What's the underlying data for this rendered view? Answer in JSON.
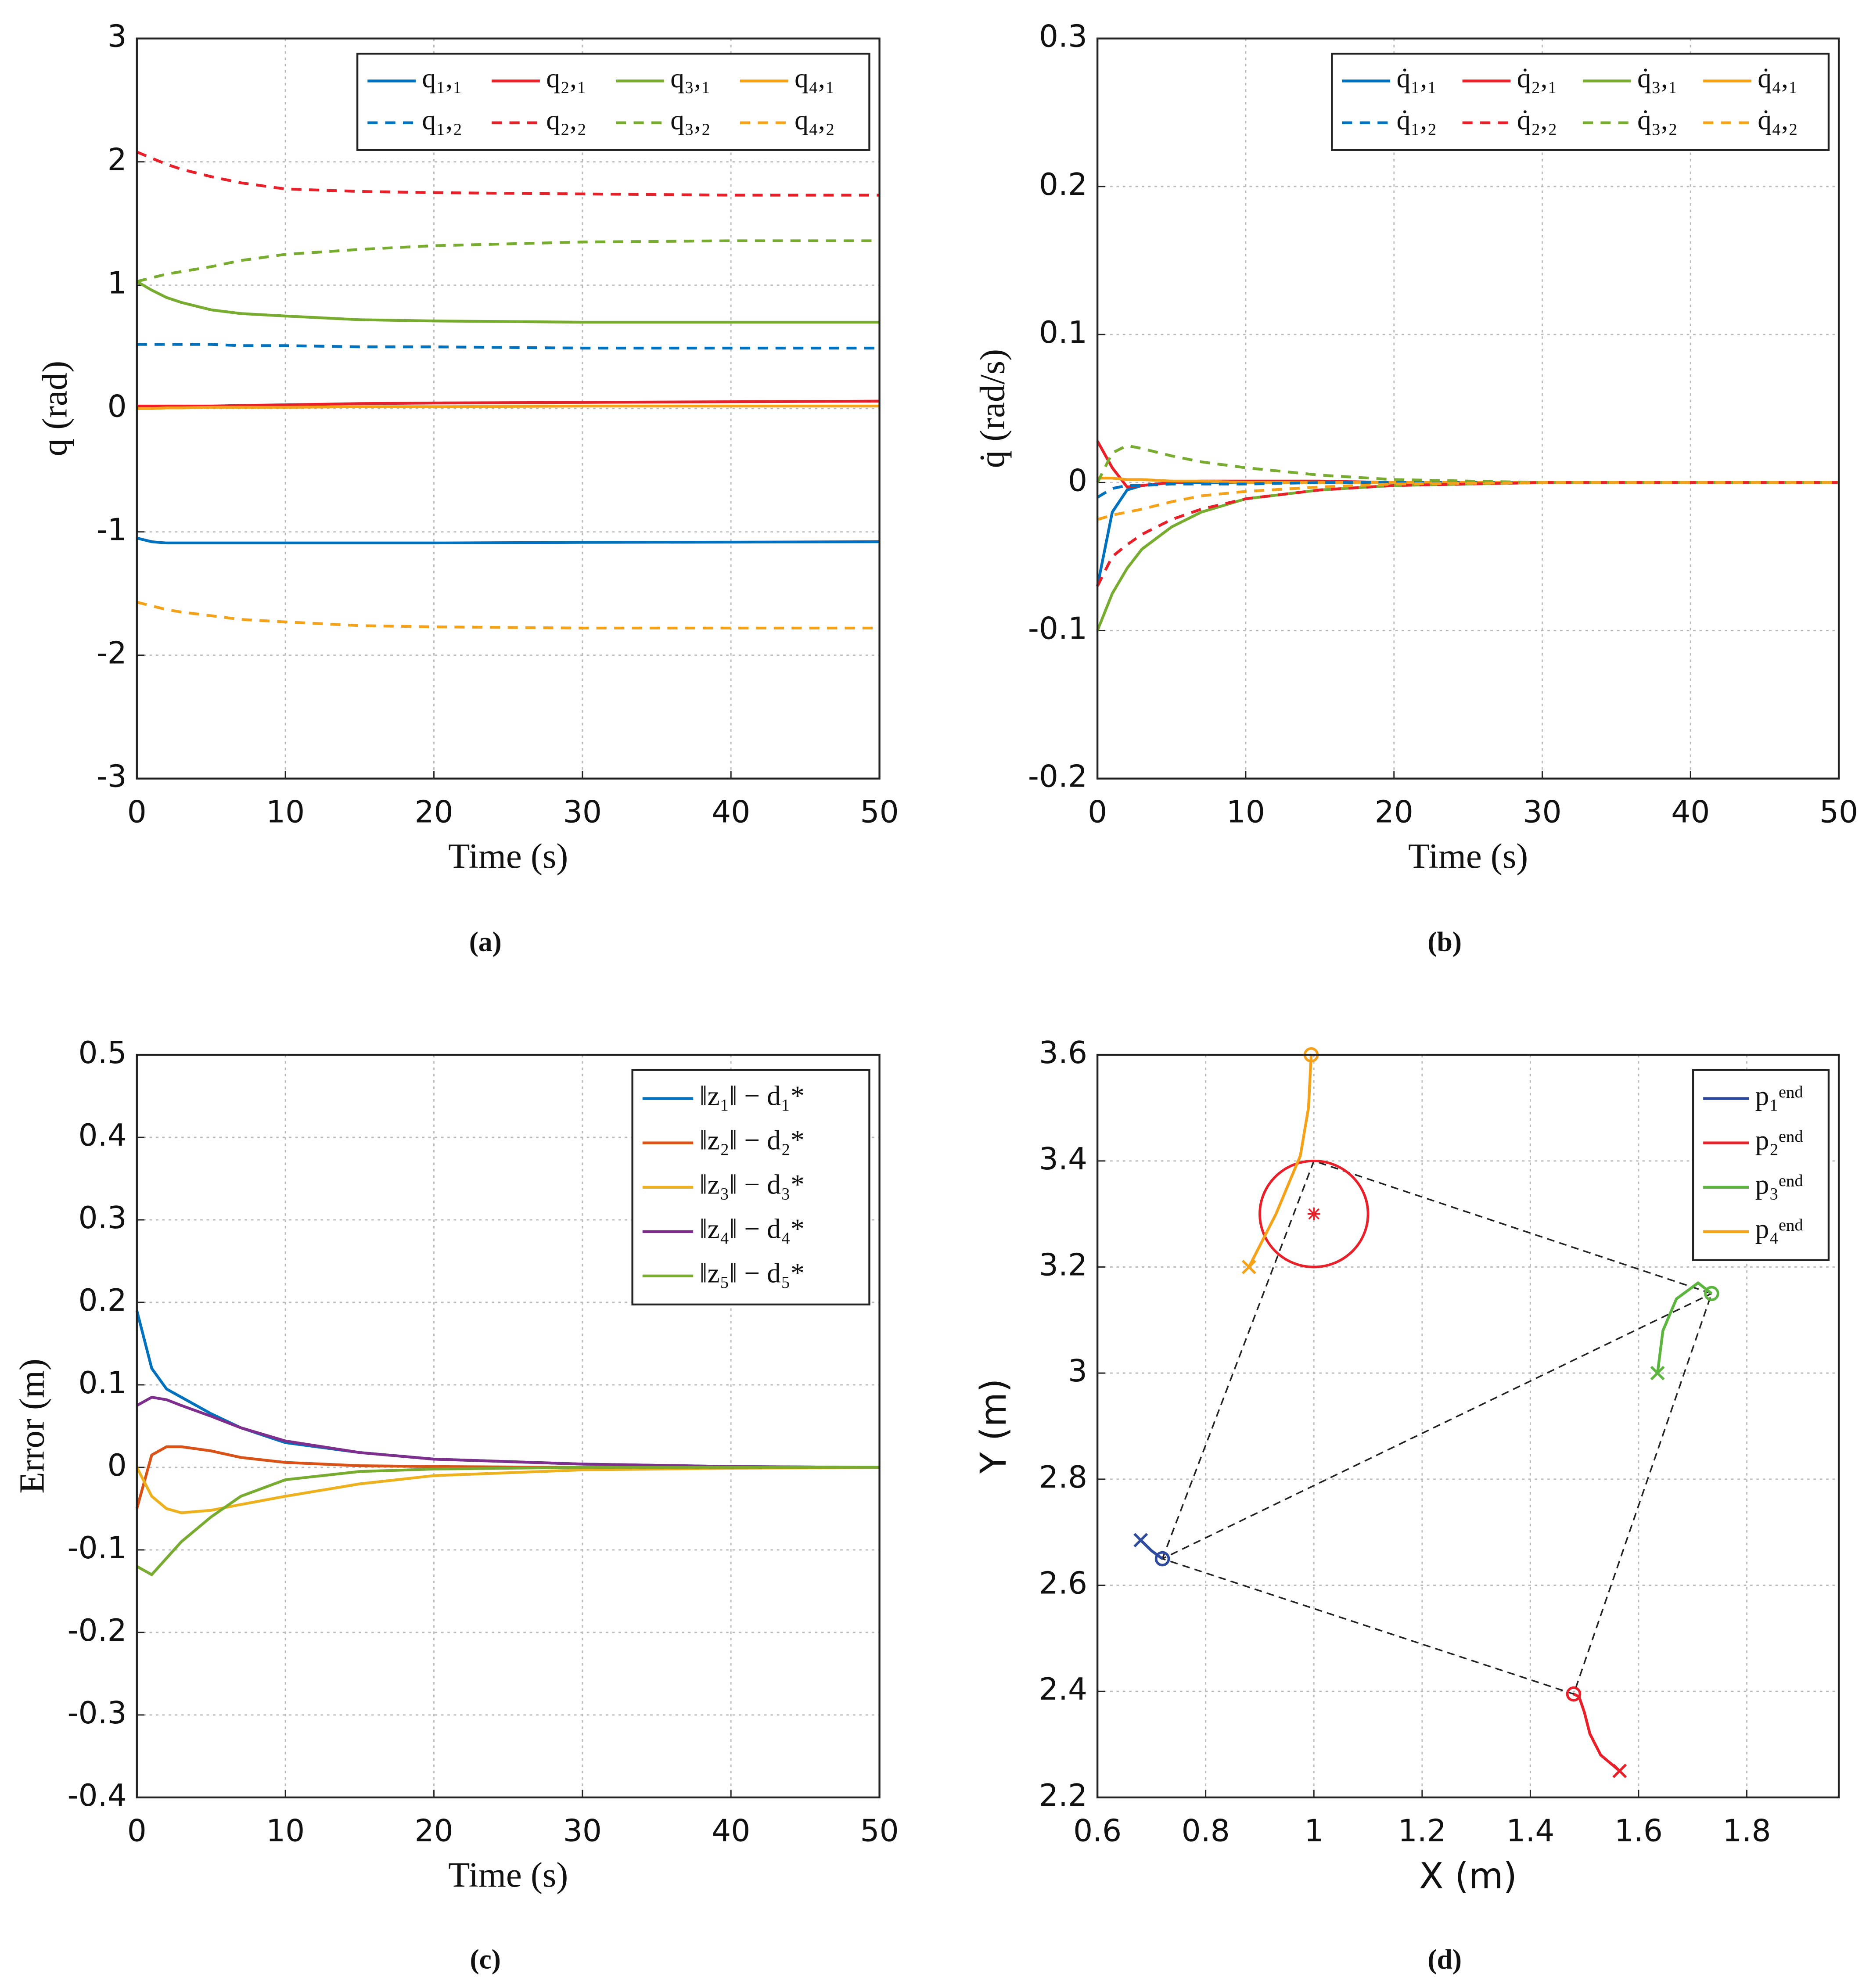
{
  "chart_data": [
    {
      "type": "line",
      "caption": "(a)",
      "xlabel": "Time (s)",
      "ylabel": "q (rad)",
      "xlim": [
        0,
        50
      ],
      "xticks": [
        0,
        10,
        20,
        30,
        40,
        50
      ],
      "ylim": [
        -3,
        3
      ],
      "yticks": [
        -3,
        -2,
        -1,
        0,
        1,
        2,
        3
      ],
      "grid": true,
      "legend": "northeast",
      "legend_columns": 4,
      "x": [
        0,
        1,
        2,
        3,
        5,
        7,
        10,
        15,
        20,
        30,
        40,
        50
      ],
      "series": [
        {
          "name": "q₁,₁",
          "color": "#0072bd",
          "line_style": "solid",
          "values": [
            -1.05,
            -1.08,
            -1.09,
            -1.09,
            -1.09,
            -1.09,
            -1.09,
            -1.09,
            -1.09,
            -1.085,
            -1.083,
            -1.08
          ]
        },
        {
          "name": "q₂,₁",
          "color": "#e8202a",
          "line_style": "solid",
          "values": [
            0.02,
            0.02,
            0.02,
            0.02,
            0.02,
            0.025,
            0.03,
            0.04,
            0.045,
            0.05,
            0.055,
            0.06
          ]
        },
        {
          "name": "q₃,₁",
          "color": "#77ac30",
          "line_style": "solid",
          "values": [
            1.03,
            0.96,
            0.9,
            0.86,
            0.8,
            0.77,
            0.75,
            0.72,
            0.71,
            0.7,
            0.7,
            0.7
          ]
        },
        {
          "name": "q₄,₁",
          "color": "#f5a21b",
          "line_style": "solid",
          "values": [
            0,
            0,
            0.005,
            0.005,
            0.01,
            0.01,
            0.01,
            0.015,
            0.015,
            0.02,
            0.02,
            0.02
          ]
        },
        {
          "name": "q₁,₂",
          "color": "#0072bd",
          "line_style": "dashed",
          "values": [
            0.52,
            0.52,
            0.52,
            0.52,
            0.52,
            0.51,
            0.51,
            0.5,
            0.5,
            0.49,
            0.49,
            0.49
          ]
        },
        {
          "name": "q₂,₂",
          "color": "#e8202a",
          "line_style": "dashed",
          "values": [
            2.08,
            2.03,
            1.98,
            1.94,
            1.88,
            1.83,
            1.78,
            1.76,
            1.75,
            1.74,
            1.73,
            1.73
          ]
        },
        {
          "name": "q₃,₂",
          "color": "#77ac30",
          "line_style": "dashed",
          "values": [
            1.03,
            1.06,
            1.09,
            1.11,
            1.15,
            1.2,
            1.25,
            1.29,
            1.32,
            1.35,
            1.36,
            1.36
          ]
        },
        {
          "name": "q₄,₂",
          "color": "#f5a21b",
          "line_style": "dashed",
          "values": [
            -1.57,
            -1.6,
            -1.63,
            -1.65,
            -1.68,
            -1.71,
            -1.73,
            -1.76,
            -1.77,
            -1.78,
            -1.78,
            -1.78
          ]
        }
      ]
    },
    {
      "type": "line",
      "caption": "(b)",
      "xlabel": "Time (s)",
      "ylabel": "q̇ (rad/s)",
      "xlim": [
        0,
        50
      ],
      "xticks": [
        0,
        10,
        20,
        30,
        40,
        50
      ],
      "ylim": [
        -0.2,
        0.3
      ],
      "yticks": [
        -0.2,
        -0.1,
        0,
        0.1,
        0.2,
        0.3
      ],
      "grid": true,
      "legend": "northeast",
      "legend_columns": 4,
      "x": [
        0,
        1,
        2,
        3,
        5,
        7,
        10,
        15,
        20,
        30,
        40,
        50
      ],
      "series": [
        {
          "name": "q̇₁,₁",
          "color": "#0072bd",
          "line_style": "solid",
          "values": [
            -0.07,
            -0.02,
            -0.005,
            -0.002,
            0,
            0,
            0,
            0,
            0,
            0,
            0,
            0
          ]
        },
        {
          "name": "q̇₂,₁",
          "color": "#e8202a",
          "line_style": "solid",
          "values": [
            0.028,
            0.01,
            -0.003,
            -0.002,
            0,
            0.001,
            0.001,
            0.001,
            0,
            0,
            0,
            0
          ]
        },
        {
          "name": "q̇₃,₁",
          "color": "#77ac30",
          "line_style": "solid",
          "values": [
            -0.1,
            -0.075,
            -0.058,
            -0.045,
            -0.03,
            -0.02,
            -0.011,
            -0.005,
            -0.002,
            0,
            0,
            0
          ]
        },
        {
          "name": "q̇₄,₁",
          "color": "#f5a21b",
          "line_style": "solid",
          "values": [
            0.003,
            0.003,
            0.002,
            0.002,
            0.001,
            0.001,
            0,
            0,
            0,
            0,
            0,
            0
          ]
        },
        {
          "name": "q̇₁,₂",
          "color": "#0072bd",
          "line_style": "dashed",
          "values": [
            -0.01,
            -0.004,
            -0.002,
            -0.002,
            -0.001,
            -0.001,
            -0.001,
            0,
            0,
            0,
            0,
            0
          ]
        },
        {
          "name": "q̇₂,₂",
          "color": "#e8202a",
          "line_style": "dashed",
          "values": [
            -0.07,
            -0.05,
            -0.042,
            -0.035,
            -0.025,
            -0.018,
            -0.011,
            -0.005,
            -0.002,
            0,
            0,
            0
          ]
        },
        {
          "name": "q̇₃,₂",
          "color": "#77ac30",
          "line_style": "dashed",
          "values": [
            0,
            0.02,
            0.025,
            0.023,
            0.018,
            0.014,
            0.01,
            0.005,
            0.002,
            0,
            0,
            0
          ]
        },
        {
          "name": "q̇₄,₂",
          "color": "#f5a21b",
          "line_style": "dashed",
          "values": [
            -0.025,
            -0.022,
            -0.02,
            -0.018,
            -0.013,
            -0.009,
            -0.006,
            -0.003,
            -0.001,
            0,
            0,
            0
          ]
        }
      ]
    },
    {
      "type": "line",
      "caption": "(c)",
      "xlabel": "Time (s)",
      "ylabel": "Error (m)",
      "xlim": [
        0,
        50
      ],
      "xticks": [
        0,
        10,
        20,
        30,
        40,
        50
      ],
      "ylim": [
        -0.4,
        0.5
      ],
      "yticks": [
        -0.4,
        -0.3,
        -0.2,
        -0.1,
        0,
        0.1,
        0.2,
        0.3,
        0.4,
        0.5
      ],
      "grid": true,
      "legend": "northeast",
      "legend_columns": 1,
      "x": [
        0,
        1,
        2,
        3,
        5,
        7,
        10,
        15,
        20,
        30,
        40,
        50
      ],
      "series": [
        {
          "name": "‖z₁‖ − d₁*",
          "color": "#0072bd",
          "line_style": "solid",
          "values": [
            0.19,
            0.12,
            0.095,
            0.085,
            0.065,
            0.048,
            0.03,
            0.018,
            0.01,
            0.004,
            0.001,
            0
          ]
        },
        {
          "name": "‖z₂‖ − d₂*",
          "color": "#d95319",
          "line_style": "solid",
          "values": [
            -0.05,
            0.015,
            0.025,
            0.025,
            0.02,
            0.012,
            0.006,
            0.002,
            0.001,
            0,
            0,
            0
          ]
        },
        {
          "name": "‖z₃‖ − d₃*",
          "color": "#edb120",
          "line_style": "solid",
          "values": [
            0,
            -0.035,
            -0.05,
            -0.055,
            -0.052,
            -0.045,
            -0.035,
            -0.02,
            -0.01,
            -0.003,
            -0.001,
            0
          ]
        },
        {
          "name": "‖z₄‖ − d₄*",
          "color": "#7e2f8e",
          "line_style": "solid",
          "values": [
            0.075,
            0.085,
            0.082,
            0.075,
            0.062,
            0.048,
            0.032,
            0.018,
            0.01,
            0.004,
            0.001,
            0
          ]
        },
        {
          "name": "‖z₅‖ − d₅*",
          "color": "#77ac30",
          "line_style": "solid",
          "values": [
            -0.12,
            -0.13,
            -0.11,
            -0.09,
            -0.06,
            -0.035,
            -0.015,
            -0.005,
            -0.002,
            0,
            0,
            0
          ]
        }
      ]
    },
    {
      "type": "trajectory",
      "caption": "(d)",
      "xlabel": "X (m)",
      "ylabel": "Y (m)",
      "xlim": [
        0.6,
        1.97
      ],
      "xticks": [
        0.6,
        0.8,
        1,
        1.2,
        1.4,
        1.6,
        1.8
      ],
      "ylim": [
        2.2,
        3.6
      ],
      "yticks": [
        2.2,
        2.4,
        2.6,
        2.8,
        3,
        3.2,
        3.4,
        3.6
      ],
      "grid": true,
      "legend": "northeast",
      "legend_columns": 1,
      "series": [
        {
          "name": "p₁ᵉⁿᵈ",
          "color": "#2d4a9e",
          "x": [
            0.68,
            0.7,
            0.72
          ],
          "values": [
            2.685,
            2.665,
            2.65
          ]
        },
        {
          "name": "p₂ᵉⁿᵈ",
          "color": "#e8202a",
          "x": [
            1.565,
            1.53,
            1.51,
            1.5,
            1.49,
            1.48
          ],
          "values": [
            2.25,
            2.28,
            2.32,
            2.36,
            2.39,
            2.395
          ]
        },
        {
          "name": "p₃ᵉⁿᵈ",
          "color": "#5bb53e",
          "x": [
            1.635,
            1.645,
            1.67,
            1.71,
            1.735
          ],
          "values": [
            3.0,
            3.08,
            3.14,
            3.17,
            3.15
          ]
        },
        {
          "name": "p₄ᵉⁿᵈ",
          "color": "#f5a21b",
          "x": [
            0.88,
            0.93,
            0.975,
            0.99,
            0.995
          ],
          "values": [
            3.2,
            3.3,
            3.41,
            3.5,
            3.6
          ]
        }
      ],
      "formation": {
        "x": [
          0.72,
          1.0,
          1.735,
          1.48,
          0.72,
          1.735
        ],
        "y": [
          2.65,
          3.4,
          3.15,
          2.395,
          2.65,
          3.15
        ]
      },
      "obstacle": {
        "center": [
          1.0,
          3.3
        ],
        "radius": 0.1,
        "color": "#e8202a"
      }
    }
  ]
}
